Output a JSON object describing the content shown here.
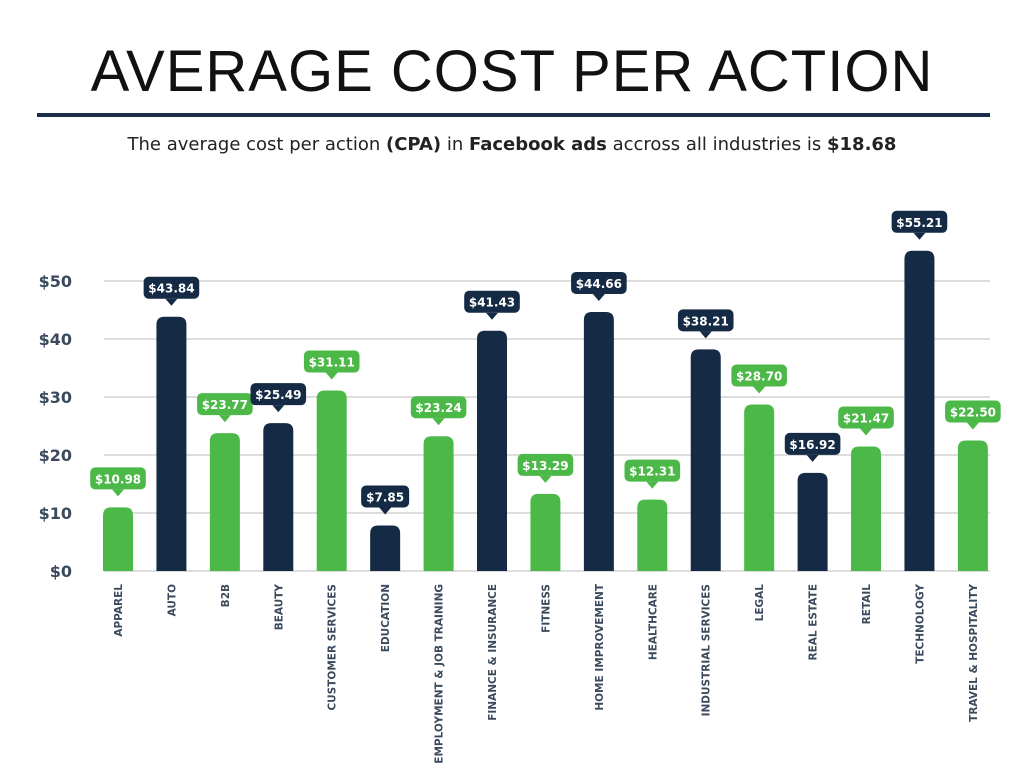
{
  "chart_data": {
    "type": "bar",
    "title": "AVERAGE COST PER ACTION",
    "subtitle_segments": [
      {
        "text": "The average cost per action ",
        "bold": false
      },
      {
        "text": "(CPA)",
        "bold": true
      },
      {
        "text": " in ",
        "bold": false
      },
      {
        "text": "Facebook ads",
        "bold": true
      },
      {
        "text": " accross all industries is ",
        "bold": false
      },
      {
        "text": "$18.68",
        "bold": true
      }
    ],
    "categories": [
      "APPAREL",
      "AUTO",
      "B2B",
      "BEAUTY",
      "CUSTOMER SERVICES",
      "EDUCATION",
      "EMPLOYMENT & JOB TRAINING",
      "FINANCE & INSURANCE",
      "FITNESS",
      "HOME IMPROVEMENT",
      "HEALTHCARE",
      "INDUSTRIAL SERVICES",
      "LEGAL",
      "REAL ESTATE",
      "RETAIL",
      "TECHNOLOGY",
      "TRAVEL & HOSPITALITY"
    ],
    "values": [
      10.98,
      43.84,
      23.77,
      25.49,
      31.11,
      7.85,
      23.24,
      41.43,
      13.29,
      44.66,
      12.31,
      38.21,
      28.7,
      16.92,
      21.47,
      55.21,
      22.5
    ],
    "data_labels": [
      "$10.98",
      "$43.84",
      "$23.77",
      "$25.49",
      "$31.11",
      "$7.85",
      "$23.24",
      "$41.43",
      "$13.29",
      "$44.66",
      "$12.31",
      "$38.21",
      "$28.70",
      "$16.92",
      "$21.47",
      "$55.21",
      "$22.50"
    ],
    "y_ticks": [
      0,
      10,
      20,
      30,
      40,
      50
    ],
    "y_tick_labels": [
      "$0",
      "$10",
      "$20",
      "$30",
      "$40",
      "$50"
    ],
    "ylim": [
      0,
      50
    ],
    "grid": true,
    "xlabel": "",
    "ylabel": "",
    "colors": {
      "green": "#4cb848",
      "navy": "#152a45",
      "grid": "#dddddd",
      "axis_text": "#3a4a5c"
    }
  }
}
